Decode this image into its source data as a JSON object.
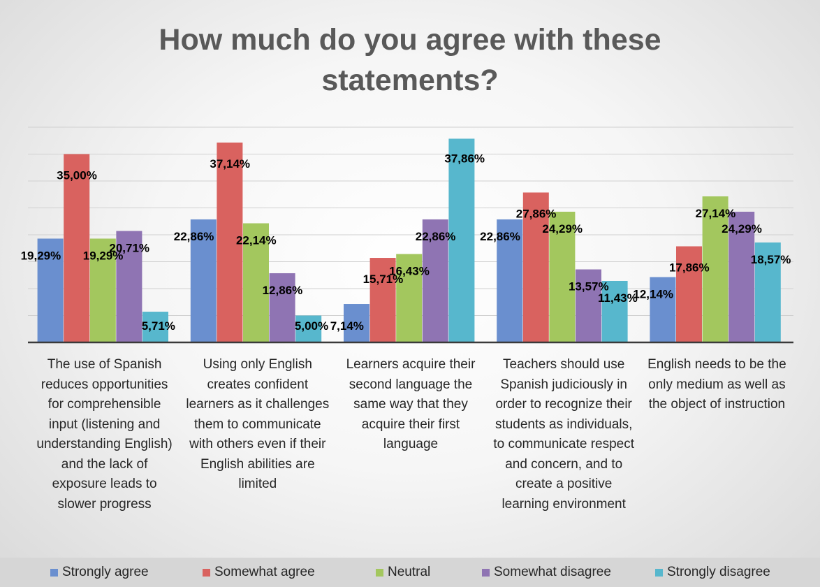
{
  "chart_data": {
    "type": "bar",
    "title": "How much do you agree with these\nstatements?",
    "categories": [
      "The use of Spanish reduces opportunities for comprehensible input (listening and understanding English) and the lack of exposure leads to slower progress",
      "Using only English creates confident learners as it challenges them to communicate with others even if their English abilities are limited",
      "Learners acquire their second language the same way that they acquire their first language",
      "Teachers should use Spanish judiciously in order to recognize their students as individuals, to communicate respect and concern, and to create a positive learning environment",
      "English needs to be the only medium as well as the object of instruction"
    ],
    "series": [
      {
        "name": "Strongly agree",
        "color": "#6a8fcf",
        "values": [
          19.29,
          22.86,
          7.14,
          22.86,
          12.14
        ],
        "labels": [
          "19,29%",
          "22,86%",
          "7,14%",
          "22,86%",
          "12,14%"
        ]
      },
      {
        "name": "Somewhat agree",
        "color": "#d9625f",
        "values": [
          35.0,
          37.14,
          15.71,
          27.86,
          17.86
        ],
        "labels": [
          "35,00%",
          "37,14%",
          "15,71%",
          "27,86%",
          "17,86%"
        ]
      },
      {
        "name": "Neutral",
        "color": "#a3c75e",
        "values": [
          19.29,
          22.14,
          16.43,
          24.29,
          27.14
        ],
        "labels": [
          "19,29%",
          "22,14%",
          "16,43%",
          "24,29%",
          "27,14%"
        ]
      },
      {
        "name": "Somewhat disagree",
        "color": "#8f74b3",
        "values": [
          20.71,
          12.86,
          22.86,
          13.57,
          24.29
        ],
        "labels": [
          "20,71%",
          "12,86%",
          "22,86%",
          "13,57%",
          "24,29%"
        ]
      },
      {
        "name": "Strongly disagree",
        "color": "#57b7cd",
        "values": [
          5.71,
          5.0,
          37.86,
          11.43,
          18.57
        ],
        "labels": [
          "5,71%",
          "5,00%",
          "37,86%",
          "11,43%",
          "18,57%"
        ]
      }
    ],
    "ylim": [
      0,
      40
    ],
    "grid": true,
    "legend": "bottom"
  }
}
